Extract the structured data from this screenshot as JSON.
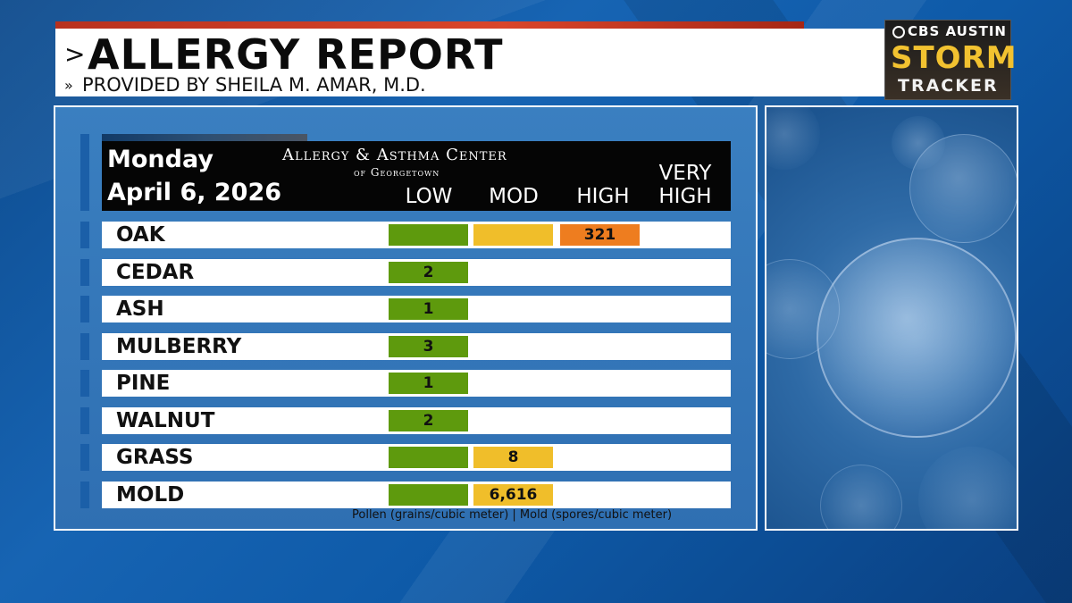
{
  "header": {
    "title": "ALLERGY REPORT",
    "subtitle": "PROVIDED BY SHEILA M. AMAR, M.D.",
    "title_chevron": ">",
    "subtitle_chevron": "»"
  },
  "logo": {
    "network": "CBS AUSTIN",
    "storm": "STORM",
    "tracker": "TRACKER"
  },
  "report": {
    "day": "Monday",
    "date": "April 6, 2026",
    "org_line1": "Allergy & Asthma Center",
    "org_line2": "of Georgetown",
    "levels": [
      "LOW",
      "MOD",
      "HIGH"
    ],
    "level_very_1": "VERY",
    "level_very_2": "HIGH",
    "footnote": "Pollen (grains/cubic meter) | Mold (spores/cubic meter)"
  },
  "colors": {
    "low": "#5e9a0d",
    "mod": "#f0be2a",
    "high": "#ee7d1f",
    "very_high": "#d8261c"
  },
  "chart_data": {
    "type": "table",
    "title": "ALLERGY REPORT",
    "levels": [
      "LOW",
      "MOD",
      "HIGH",
      "VERY HIGH"
    ],
    "rows": [
      {
        "name": "OAK",
        "value": "321",
        "level": 3
      },
      {
        "name": "CEDAR",
        "value": "2",
        "level": 1
      },
      {
        "name": "ASH",
        "value": "1",
        "level": 1
      },
      {
        "name": "MULBERRY",
        "value": "3",
        "level": 1
      },
      {
        "name": "PINE",
        "value": "1",
        "level": 1
      },
      {
        "name": "WALNUT",
        "value": "2",
        "level": 1
      },
      {
        "name": "GRASS",
        "value": "8",
        "level": 2
      },
      {
        "name": "MOLD",
        "value": "6,616",
        "level": 2
      }
    ]
  }
}
